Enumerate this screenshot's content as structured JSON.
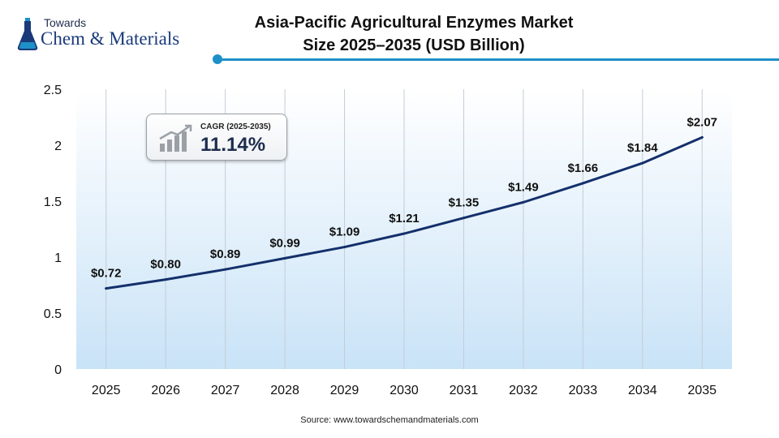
{
  "logo": {
    "top_text": "Towards",
    "brand_text": "Chem & Materials"
  },
  "source_text": "Source: www.towardschemandmaterials.com",
  "cagr": {
    "label": "CAGR (2025-2035)",
    "value": "11.14%"
  },
  "colors": {
    "line": "#14306b",
    "accent": "#1e90c8",
    "plot_bg_top": "#ffffff",
    "plot_bg_bottom": "#c9e3f7"
  },
  "chart_data": {
    "type": "line",
    "title": "Asia-Pacific Agricultural Enzymes Market Size 2025–2035 (USD Billion)",
    "categories": [
      "2025",
      "2026",
      "2027",
      "2028",
      "2029",
      "2030",
      "2031",
      "2032",
      "2033",
      "2034",
      "2035"
    ],
    "values": [
      0.72,
      0.8,
      0.89,
      0.99,
      1.09,
      1.21,
      1.35,
      1.49,
      1.66,
      1.84,
      2.07
    ],
    "data_labels": [
      "$0.72",
      "$0.80",
      "$0.89",
      "$0.99",
      "$1.09",
      "$1.21",
      "$1.35",
      "$1.49",
      "$1.66",
      "$1.84",
      "$2.07"
    ],
    "y_ticks": [
      "0",
      "0.5",
      "1",
      "1.5",
      "2",
      "2.5"
    ],
    "ylim": [
      0,
      2.5
    ],
    "xlabel": "",
    "ylabel": "",
    "grid": "vertical"
  }
}
